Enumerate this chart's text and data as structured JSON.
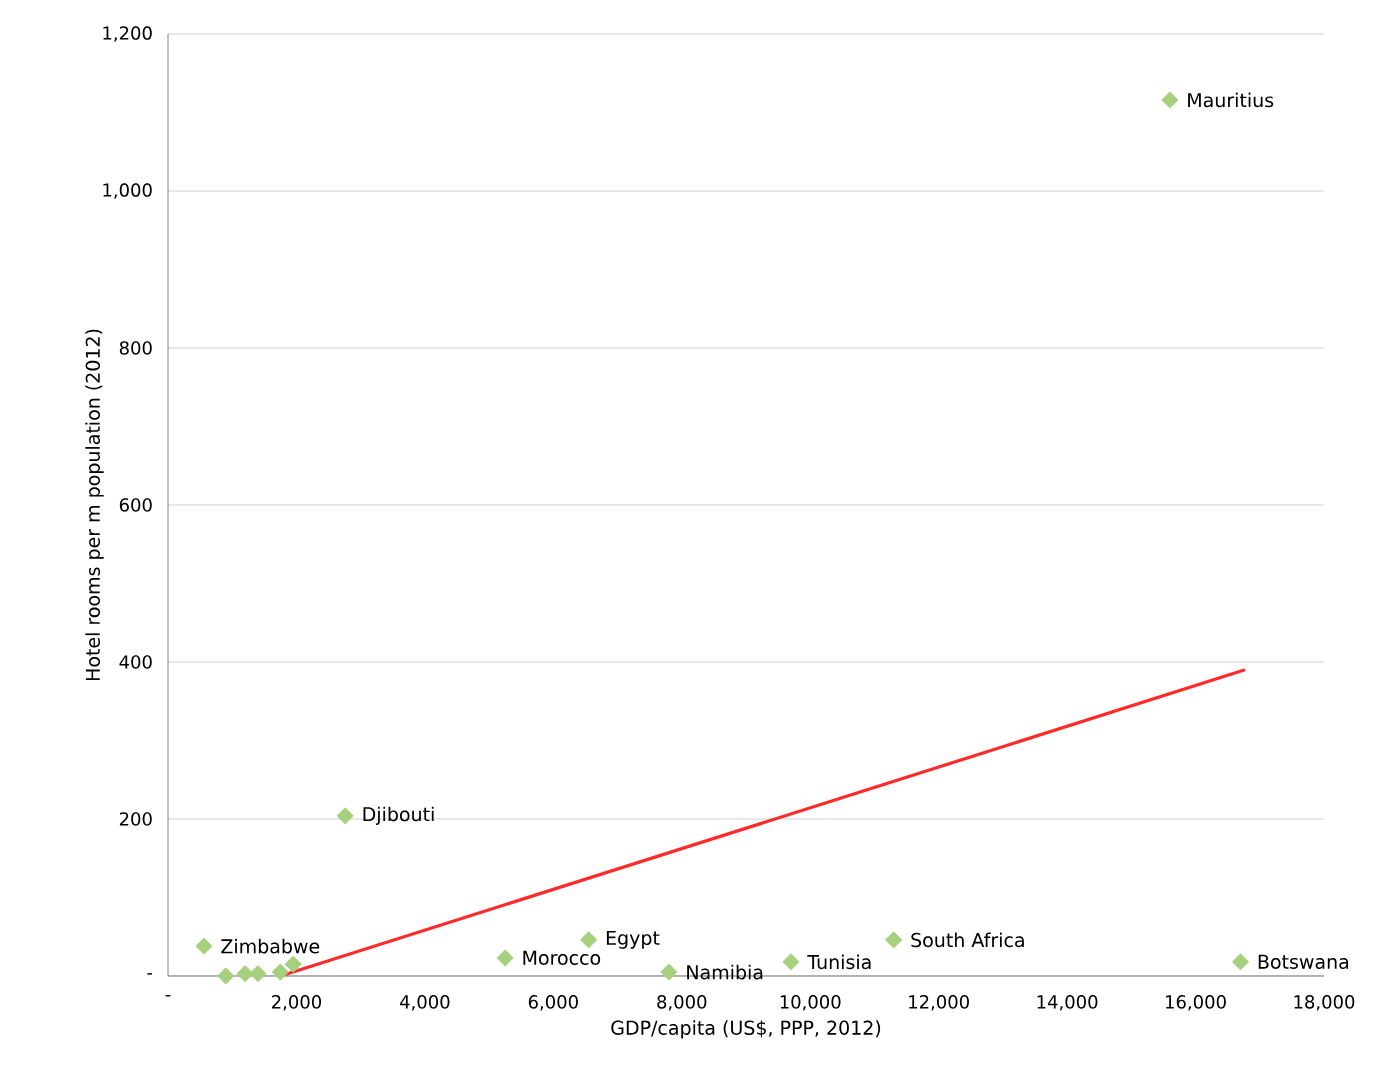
{
  "chart_data": {
    "type": "scatter",
    "xlabel": "GDP/capita (US$, PPP, 2012)",
    "ylabel": "Hotel rooms per m population (2012)",
    "xlim": [
      0,
      18000
    ],
    "ylim": [
      0,
      1200
    ],
    "xticks": [
      {
        "value": 0,
        "label": "-"
      },
      {
        "value": 2000,
        "label": "2,000"
      },
      {
        "value": 4000,
        "label": "4,000"
      },
      {
        "value": 6000,
        "label": "6,000"
      },
      {
        "value": 8000,
        "label": "8,000"
      },
      {
        "value": 10000,
        "label": "10,000"
      },
      {
        "value": 12000,
        "label": "12,000"
      },
      {
        "value": 14000,
        "label": "14,000"
      },
      {
        "value": 16000,
        "label": "16,000"
      },
      {
        "value": 18000,
        "label": "18,000"
      }
    ],
    "yticks": [
      {
        "value": 0,
        "label": "-"
      },
      200,
      400,
      600,
      800,
      {
        "value": 1000,
        "label": "1,000"
      },
      {
        "value": 1200,
        "label": "1,200"
      }
    ],
    "grid": "y",
    "series": [
      {
        "marker": "diamond",
        "color": "#a6cf7e",
        "x": [
          15600,
          2760,
          560,
          900,
          1200,
          1400,
          1750,
          1950,
          5250,
          6550,
          7800,
          9700,
          11300,
          16700
        ],
        "values": [
          1116,
          204,
          38,
          0,
          3,
          3,
          5,
          15,
          23,
          46,
          5,
          18,
          46,
          18
        ]
      },
      {
        "type": "line",
        "color": "#ff2a2a",
        "x": [
          1750,
          16770
        ],
        "values": [
          0,
          390
        ]
      }
    ],
    "annotations": [
      {
        "text": "Mauritius",
        "x": 15600,
        "y": 1116
      },
      {
        "text": "Djibouti",
        "x": 2760,
        "y": 204
      },
      {
        "text": "Zimbabwe",
        "x": 560,
        "y": 38
      },
      {
        "text": "Morocco",
        "x": 5250,
        "y": 23
      },
      {
        "text": "Egypt",
        "x": 6550,
        "y": 46
      },
      {
        "text": "Namibia",
        "x": 7800,
        "y": 5
      },
      {
        "text": "Tunisia",
        "x": 9700,
        "y": 18
      },
      {
        "text": "South Africa",
        "x": 11300,
        "y": 46
      },
      {
        "text": "Botswana",
        "x": 16700,
        "y": 18
      }
    ]
  }
}
